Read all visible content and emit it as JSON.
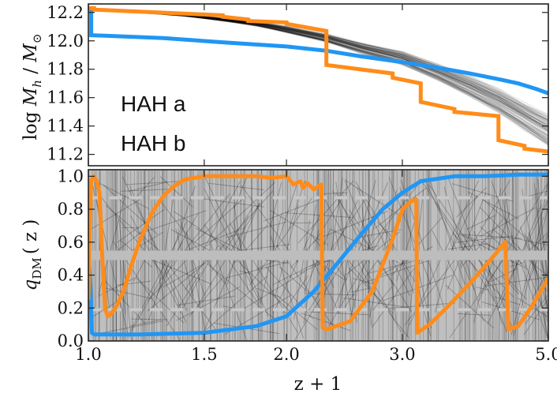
{
  "chart_data": [
    {
      "type": "line",
      "panel": "top",
      "ylabel_parts": [
        "log ",
        "M",
        "h",
        " / ",
        "M",
        "⊙"
      ],
      "xlabel": "",
      "xscale": "log",
      "xlim": [
        1.0,
        5.0
      ],
      "ylim": [
        11.12,
        12.26
      ],
      "xticks": [
        1.0,
        1.5,
        2.0,
        3.0,
        5.0
      ],
      "yticks": [
        "12.2",
        "12.0",
        "11.8",
        "11.6",
        "11.4",
        "11.2"
      ],
      "yticks_values": [
        12.2,
        12.0,
        11.8,
        11.6,
        11.4,
        11.2
      ],
      "ensemble": {
        "description": "many thin black tracks",
        "mean": {
          "x": [
            1.0,
            1.1,
            1.2,
            1.4,
            1.6,
            1.8,
            2.0,
            2.3,
            2.6,
            3.0,
            3.4,
            3.8,
            4.2,
            4.6,
            5.0
          ],
          "y": [
            12.22,
            12.21,
            12.2,
            12.18,
            12.15,
            12.12,
            12.08,
            12.02,
            11.95,
            11.88,
            11.78,
            11.68,
            11.58,
            11.47,
            11.37
          ]
        }
      },
      "legend": [
        {
          "label": "HAH a",
          "color": "#ff8c1a"
        },
        {
          "label": "HAH b",
          "color": "#2196f3"
        }
      ],
      "series": [
        {
          "name": "HAH a",
          "color": "#ff8c1a",
          "x": [
            1.0,
            1.02,
            1.02,
            1.6,
            1.6,
            1.75,
            1.75,
            2.0,
            2.0,
            2.3,
            2.3,
            2.9,
            2.9,
            3.2,
            3.2,
            3.6,
            3.6,
            4.2,
            4.2,
            4.6,
            4.6,
            5.0
          ],
          "y": [
            12.23,
            12.23,
            12.22,
            12.18,
            12.17,
            12.15,
            12.14,
            12.13,
            12.12,
            12.07,
            11.83,
            11.77,
            11.74,
            11.7,
            11.57,
            11.52,
            11.5,
            11.47,
            11.3,
            11.26,
            11.24,
            11.22
          ]
        },
        {
          "name": "HAH b",
          "color": "#2196f3",
          "x": [
            1.0,
            1.01,
            1.01,
            1.3,
            1.6,
            2.0,
            2.3,
            2.6,
            3.0,
            3.4,
            3.8,
            4.2,
            4.5,
            4.8,
            5.0
          ],
          "y": [
            12.23,
            12.23,
            12.04,
            12.02,
            11.99,
            11.96,
            11.93,
            11.89,
            11.85,
            11.81,
            11.77,
            11.73,
            11.7,
            11.66,
            11.63
          ]
        }
      ]
    },
    {
      "type": "line",
      "panel": "bottom",
      "ylabel_parts": [
        "q",
        "DM",
        "( z )"
      ],
      "xlabel": "z + 1",
      "xscale": "log",
      "xlim": [
        1.0,
        5.0
      ],
      "ylim": [
        0.0,
        1.04
      ],
      "xticks": [
        1.0,
        1.5,
        2.0,
        3.0,
        5.0
      ],
      "xtick_labels": [
        "1.0",
        "1.5",
        "2.0",
        "3.0",
        "5.0"
      ],
      "yticks": [
        "1.0",
        "0.8",
        "0.6",
        "0.4",
        "0.2",
        "0.0"
      ],
      "yticks_values": [
        1.0,
        0.8,
        0.6,
        0.4,
        0.2,
        0.0
      ],
      "reference_lines": [
        {
          "y": 0.52,
          "style": "solid",
          "color": "#bdbdbd"
        },
        {
          "y": 0.87,
          "style": "dashed",
          "color": "#c8c8c8"
        },
        {
          "y": 0.19,
          "style": "dashed",
          "color": "#c8c8c8"
        }
      ],
      "ensemble": {
        "description": "dense black tracks covering 0 to 1"
      },
      "series": [
        {
          "name": "HAH a",
          "color": "#ff8c1a",
          "x": [
            1.0,
            1.005,
            1.01,
            1.02,
            1.03,
            1.04,
            1.05,
            1.06,
            1.07,
            1.08,
            1.1,
            1.13,
            1.16,
            1.2,
            1.25,
            1.3,
            1.35,
            1.4,
            1.5,
            1.6,
            1.7,
            1.8,
            1.9,
            2.0,
            2.05,
            2.1,
            2.12,
            2.15,
            2.2,
            2.26,
            2.27,
            2.3,
            2.5,
            2.7,
            2.9,
            3.0,
            3.1,
            3.15,
            3.16,
            3.3,
            3.5,
            3.8,
            4.1,
            4.3,
            4.35,
            4.5,
            4.7,
            5.0
          ],
          "y": [
            0.25,
            0.7,
            0.98,
            1.0,
            0.97,
            0.9,
            0.5,
            0.2,
            0.15,
            0.16,
            0.2,
            0.3,
            0.45,
            0.62,
            0.78,
            0.88,
            0.94,
            0.98,
            1.0,
            1.0,
            1.0,
            1.0,
            0.99,
            1.0,
            0.95,
            0.97,
            0.93,
            0.96,
            0.92,
            0.95,
            0.08,
            0.07,
            0.12,
            0.3,
            0.62,
            0.8,
            0.85,
            0.86,
            0.05,
            0.1,
            0.2,
            0.35,
            0.5,
            0.6,
            0.07,
            0.09,
            0.2,
            0.38
          ]
        },
        {
          "name": "HAH b",
          "color": "#2196f3",
          "x": [
            1.0,
            1.008,
            1.012,
            1.02,
            1.2,
            1.5,
            1.8,
            2.0,
            2.2,
            2.4,
            2.6,
            2.8,
            3.0,
            3.2,
            3.6,
            4.0,
            4.5,
            5.0
          ],
          "y": [
            0.55,
            0.3,
            0.05,
            0.04,
            0.04,
            0.05,
            0.09,
            0.15,
            0.3,
            0.48,
            0.65,
            0.8,
            0.9,
            0.97,
            1.0,
            1.0,
            1.01,
            1.01
          ]
        }
      ]
    }
  ]
}
